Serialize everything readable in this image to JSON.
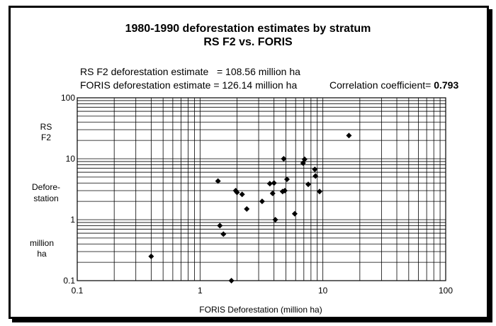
{
  "chart_data": {
    "type": "scatter",
    "title": "1980-1990 deforestation estimates by stratum",
    "subtitle": "RS F2 vs. FORIS",
    "annotations": {
      "rs_label": "RS F2 deforestation estimate",
      "rs_value": "= 108.56 million ha",
      "foris_label": "FORIS deforestation estimate",
      "foris_value": "= 126.14 million ha",
      "corr_label": "Correlation coefficient=",
      "corr_value": "0.793"
    },
    "xlabel": "FORIS  Deforestation   (million ha)",
    "ylabel_lines": [
      "RS",
      "F2",
      "Defore-",
      "station",
      "million",
      "ha"
    ],
    "xscale": "log",
    "yscale": "log",
    "xlim": [
      0.1,
      100
    ],
    "ylim": [
      0.1,
      100
    ],
    "x_ticks": [
      "0.1",
      "1",
      "10",
      "100"
    ],
    "y_ticks": [
      "0.1",
      "1",
      "10",
      "100"
    ],
    "grid": true,
    "marker": "diamond",
    "points": [
      {
        "x": 0.4,
        "y": 0.25
      },
      {
        "x": 1.4,
        "y": 4.3
      },
      {
        "x": 1.45,
        "y": 0.8
      },
      {
        "x": 1.55,
        "y": 0.58
      },
      {
        "x": 1.8,
        "y": 0.1
      },
      {
        "x": 1.95,
        "y": 3.0
      },
      {
        "x": 2.0,
        "y": 2.8
      },
      {
        "x": 2.2,
        "y": 2.6
      },
      {
        "x": 2.4,
        "y": 1.5
      },
      {
        "x": 3.2,
        "y": 2.0
      },
      {
        "x": 3.7,
        "y": 3.9
      },
      {
        "x": 3.9,
        "y": 2.7
      },
      {
        "x": 4.0,
        "y": 4.0
      },
      {
        "x": 4.1,
        "y": 1.0
      },
      {
        "x": 4.7,
        "y": 2.9
      },
      {
        "x": 4.8,
        "y": 10.0
      },
      {
        "x": 4.9,
        "y": 3.0
      },
      {
        "x": 5.1,
        "y": 4.6
      },
      {
        "x": 5.9,
        "y": 1.25
      },
      {
        "x": 6.9,
        "y": 8.5
      },
      {
        "x": 7.1,
        "y": 9.8
      },
      {
        "x": 7.6,
        "y": 3.8
      },
      {
        "x": 8.6,
        "y": 6.7
      },
      {
        "x": 8.7,
        "y": 5.2
      },
      {
        "x": 9.4,
        "y": 2.9
      },
      {
        "x": 16.3,
        "y": 24.0
      }
    ]
  }
}
